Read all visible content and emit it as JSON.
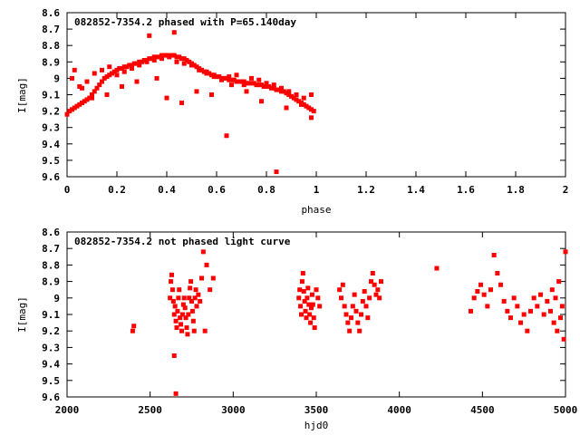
{
  "chart_data": [
    {
      "type": "scatter",
      "title": "082852-7354.2 phased with P=65.140day",
      "xlabel": "phase",
      "ylabel": "I[mag]",
      "xlim": [
        0,
        2
      ],
      "ylim": [
        8.6,
        9.6
      ],
      "y_inverted": true,
      "grid": false,
      "color": "#ff0000",
      "xticks": [
        "0",
        "0.2",
        "0.4",
        "0.6",
        "0.8",
        "1",
        "1.2",
        "1.4",
        "1.6",
        "1.8",
        "2"
      ],
      "yticks": [
        "8.6",
        "8.7",
        "8.8",
        "8.9",
        "9",
        "9.1",
        "9.2",
        "9.3",
        "9.4",
        "9.5",
        "9.6"
      ],
      "series": [
        {
          "x": [
            0.0,
            0.01,
            0.02,
            0.03,
            0.04,
            0.05,
            0.06,
            0.07,
            0.08,
            0.09,
            0.1,
            0.11,
            0.12,
            0.13,
            0.14,
            0.15,
            0.16,
            0.17,
            0.18,
            0.19,
            0.2,
            0.21,
            0.22,
            0.23,
            0.24,
            0.25,
            0.26,
            0.27,
            0.28,
            0.29,
            0.3,
            0.31,
            0.32,
            0.33,
            0.34,
            0.35,
            0.36,
            0.37,
            0.38,
            0.39,
            0.4,
            0.41,
            0.42,
            0.43,
            0.44,
            0.45,
            0.46,
            0.47,
            0.48,
            0.49,
            0.5,
            0.51,
            0.52,
            0.53,
            0.54,
            0.55,
            0.56,
            0.57,
            0.58,
            0.59,
            0.6,
            0.61,
            0.62,
            0.63,
            0.64,
            0.65,
            0.66,
            0.67,
            0.68,
            0.69,
            0.7,
            0.71,
            0.72,
            0.73,
            0.74,
            0.75,
            0.76,
            0.77,
            0.78,
            0.79,
            0.8,
            0.81,
            0.82,
            0.83,
            0.84,
            0.85,
            0.86,
            0.87,
            0.88,
            0.89,
            0.9,
            0.91,
            0.92,
            0.93,
            0.94,
            0.95,
            0.96,
            0.97,
            0.98,
            0.99,
            0.02,
            0.05,
            0.08,
            0.11,
            0.14,
            0.17,
            0.2,
            0.23,
            0.26,
            0.29,
            0.32,
            0.35,
            0.38,
            0.41,
            0.44,
            0.47,
            0.5,
            0.53,
            0.56,
            0.59,
            0.62,
            0.65,
            0.68,
            0.71,
            0.74,
            0.77,
            0.8,
            0.83,
            0.86,
            0.89,
            0.92,
            0.95,
            0.98,
            0.03,
            0.06,
            0.1,
            0.16,
            0.22,
            0.28,
            0.36,
            0.4,
            0.46,
            0.52,
            0.58,
            0.66,
            0.72,
            0.78,
            0.88,
            0.94,
            0.33,
            0.43,
            0.64,
            0.84,
            0.98
          ],
          "y": [
            9.22,
            9.2,
            9.19,
            9.18,
            9.17,
            9.16,
            9.15,
            9.14,
            9.13,
            9.12,
            9.1,
            9.08,
            9.06,
            9.04,
            9.02,
            9.0,
            8.99,
            8.98,
            8.97,
            8.96,
            8.95,
            8.94,
            8.94,
            8.93,
            8.93,
            8.92,
            8.92,
            8.91,
            8.91,
            8.9,
            8.9,
            8.89,
            8.89,
            8.88,
            8.88,
            8.87,
            8.87,
            8.87,
            8.86,
            8.86,
            8.86,
            8.86,
            8.86,
            8.86,
            8.87,
            8.87,
            8.88,
            8.88,
            8.89,
            8.9,
            8.91,
            8.92,
            8.93,
            8.94,
            8.95,
            8.96,
            8.96,
            8.97,
            8.98,
            8.98,
            8.99,
            8.99,
            9.0,
            9.0,
            9.0,
            9.01,
            9.01,
            9.01,
            9.02,
            9.02,
            9.02,
            9.02,
            9.03,
            9.03,
            9.03,
            9.03,
            9.04,
            9.04,
            9.04,
            9.05,
            9.05,
            9.05,
            9.06,
            9.06,
            9.07,
            9.07,
            9.08,
            9.08,
            9.09,
            9.1,
            9.11,
            9.12,
            9.13,
            9.14,
            9.15,
            9.16,
            9.17,
            9.18,
            9.19,
            9.2,
            9.0,
            9.05,
            9.02,
            8.97,
            8.95,
            8.93,
            8.98,
            8.96,
            8.94,
            8.92,
            8.9,
            8.89,
            8.88,
            8.87,
            8.9,
            8.91,
            8.92,
            8.95,
            8.97,
            8.99,
            9.01,
            8.99,
            8.98,
            9.04,
            9.0,
            9.01,
            9.03,
            9.04,
            9.06,
            9.08,
            9.1,
            9.12,
            9.1,
            8.95,
            9.06,
            9.12,
            9.1,
            9.05,
            9.02,
            9.0,
            9.12,
            9.15,
            9.08,
            9.1,
            9.04,
            9.08,
            9.14,
            9.18,
            9.16,
            8.74,
            8.72,
            9.35,
            9.57,
            9.24
          ]
        }
      ]
    },
    {
      "type": "scatter",
      "title": "082852-7354.2 not phased light curve",
      "xlabel": "hjd0",
      "ylabel": "I[mag]",
      "xlim": [
        2000,
        5000
      ],
      "ylim": [
        8.6,
        9.6
      ],
      "y_inverted": true,
      "grid": false,
      "color": "#ff0000",
      "xticks": [
        "2000",
        "2500",
        "3000",
        "3500",
        "4000",
        "4500",
        "5000"
      ],
      "yticks": [
        "8.6",
        "8.7",
        "8.8",
        "8.9",
        "9",
        "9.1",
        "9.2",
        "9.3",
        "9.4",
        "9.5",
        "9.6"
      ],
      "series": [
        {
          "x": [
            2395,
            2402,
            2620,
            2625,
            2630,
            2635,
            2640,
            2645,
            2650,
            2655,
            2660,
            2665,
            2670,
            2675,
            2680,
            2685,
            2690,
            2695,
            2700,
            2705,
            2710,
            2715,
            2720,
            2725,
            2730,
            2735,
            2740,
            2745,
            2750,
            2755,
            2760,
            2765,
            2770,
            2775,
            2780,
            2790,
            2800,
            2810,
            2820,
            2830,
            2840,
            2860,
            2880,
            2645,
            2655,
            3395,
            3400,
            3405,
            3410,
            3415,
            3420,
            3425,
            3430,
            3435,
            3440,
            3445,
            3450,
            3455,
            3460,
            3465,
            3470,
            3475,
            3480,
            3485,
            3490,
            3500,
            3510,
            3520,
            3640,
            3650,
            3660,
            3670,
            3680,
            3690,
            3700,
            3710,
            3720,
            3730,
            3740,
            3750,
            3760,
            3770,
            3780,
            3790,
            3800,
            3810,
            3820,
            3830,
            3840,
            3850,
            3860,
            3870,
            3880,
            3890,
            4225,
            4430,
            4450,
            4470,
            4490,
            4510,
            4530,
            4550,
            4570,
            4590,
            4610,
            4630,
            4650,
            4670,
            4690,
            4710,
            4730,
            4750,
            4770,
            4790,
            4810,
            4830,
            4850,
            4870,
            4890,
            4910,
            4930,
            4950,
            4970,
            4990,
            4920,
            4940,
            4960,
            4980,
            5000
          ],
          "y": [
            9.2,
            9.17,
            9.0,
            8.9,
            8.86,
            8.95,
            9.02,
            9.1,
            9.05,
            9.14,
            9.18,
            9.08,
            9.0,
            8.95,
            9.12,
            9.16,
            9.2,
            9.1,
            9.04,
            9.0,
            9.06,
            9.12,
            9.18,
            9.22,
            9.1,
            9.0,
            8.94,
            8.9,
            9.02,
            9.08,
            9.14,
            9.2,
            9.0,
            8.95,
            9.05,
            8.98,
            9.02,
            8.88,
            8.72,
            9.2,
            8.8,
            8.95,
            8.88,
            9.35,
            9.58,
            9.0,
            8.95,
            9.05,
            9.1,
            8.9,
            8.85,
            8.96,
            9.02,
            9.08,
            9.12,
            9.0,
            8.94,
            9.04,
            9.1,
            9.15,
            9.06,
            8.98,
            9.04,
            9.12,
            9.18,
            8.95,
            9.0,
            9.05,
            8.95,
            9.0,
            8.92,
            9.05,
            9.1,
            9.15,
            9.2,
            9.12,
            9.05,
            8.98,
            9.08,
            9.15,
            9.2,
            9.1,
            9.02,
            8.96,
            9.05,
            9.12,
            9.0,
            8.9,
            8.85,
            8.92,
            8.98,
            8.95,
            9.0,
            8.9,
            8.82,
            9.08,
            9.0,
            8.96,
            8.92,
            8.98,
            9.05,
            8.95,
            8.74,
            8.85,
            8.92,
            9.02,
            9.08,
            9.12,
            9.0,
            9.05,
            9.15,
            9.1,
            9.2,
            9.08,
            9.0,
            9.05,
            8.98,
            9.1,
            9.02,
            9.08,
            9.15,
            9.2,
            9.12,
            9.25,
            8.95,
            9.0,
            8.9,
            9.05,
            8.72
          ]
        }
      ]
    }
  ]
}
